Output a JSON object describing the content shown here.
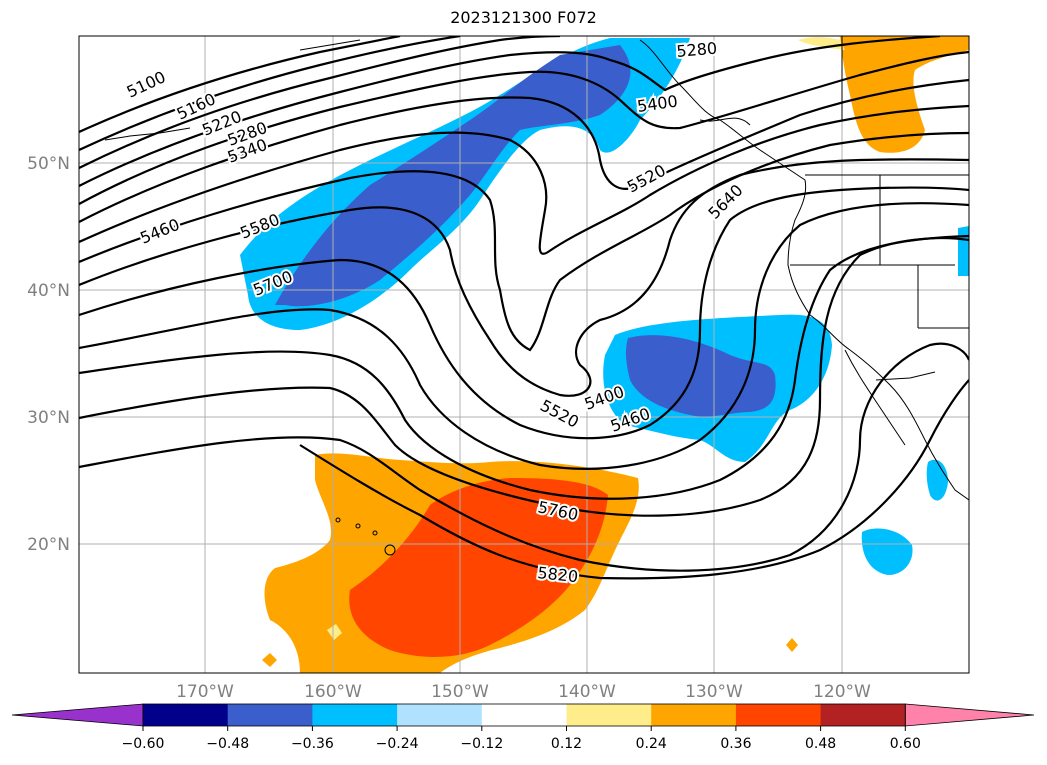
{
  "title": "2023121300 F072",
  "map": {
    "lat_labels": [
      "50°N",
      "40°N",
      "30°N",
      "20°N"
    ],
    "lon_labels": [
      "170°W",
      "160°W",
      "150°W",
      "140°W",
      "130°W",
      "120°W"
    ],
    "contour_labels": [
      "5100",
      "5160",
      "5220",
      "5280",
      "5340",
      "5460",
      "5580",
      "5700",
      "5280",
      "5400",
      "5520",
      "5640",
      "5400",
      "5460",
      "5520",
      "5760",
      "5820"
    ]
  },
  "colorbar": {
    "tick_labels": [
      "−0.60",
      "−0.48",
      "−0.36",
      "−0.24",
      "−0.12",
      "0.12",
      "0.24",
      "0.36",
      "0.48",
      "0.60"
    ],
    "colors": [
      "#9932cc",
      "#00008b",
      "#3a5fcd",
      "#00bfff",
      "#b0e2ff",
      "#ffffff",
      "#ffec8b",
      "#ffa500",
      "#ff4500",
      "#b22222",
      "#ff82ab"
    ]
  }
}
